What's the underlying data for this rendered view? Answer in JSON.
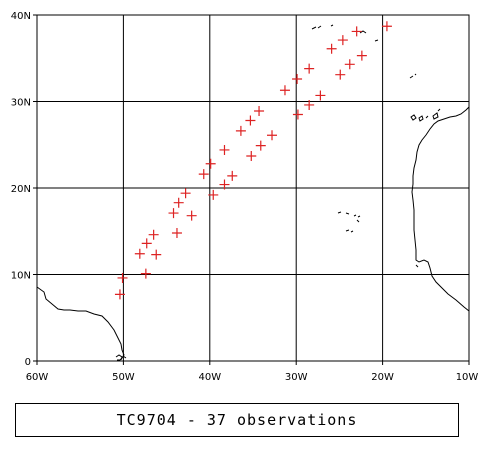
{
  "caption": "TC9704 - 37 observations",
  "map": {
    "lon_range": [
      -60,
      -10
    ],
    "lat_range": [
      0,
      40
    ],
    "grid_lons": [
      -50,
      -40,
      -30,
      -20
    ],
    "grid_lats": [
      10,
      20,
      30
    ],
    "lon_ticks": [
      {
        "lon": -60,
        "label": "60W"
      },
      {
        "lon": -50,
        "label": "50W"
      },
      {
        "lon": -40,
        "label": "40W"
      },
      {
        "lon": -30,
        "label": "30W"
      },
      {
        "lon": -20,
        "label": "20W"
      },
      {
        "lon": -10,
        "label": "10W"
      }
    ],
    "lat_ticks": [
      {
        "lat": 0,
        "label": "0"
      },
      {
        "lat": 10,
        "label": "10N"
      },
      {
        "lat": 20,
        "label": "20N"
      },
      {
        "lat": 30,
        "label": "30N"
      },
      {
        "lat": 40,
        "label": "40N"
      }
    ],
    "colors": {
      "grid": "#000000",
      "coast": "#000000",
      "marker": "#dd2222"
    }
  },
  "observations": [
    {
      "lon": -50.4,
      "lat": 7.7
    },
    {
      "lon": -50.1,
      "lat": 9.6
    },
    {
      "lon": -47.4,
      "lat": 10.1
    },
    {
      "lon": -48.1,
      "lat": 12.4
    },
    {
      "lon": -47.3,
      "lat": 13.6
    },
    {
      "lon": -46.5,
      "lat": 14.6
    },
    {
      "lon": -46.2,
      "lat": 12.3
    },
    {
      "lon": -44.2,
      "lat": 17.1
    },
    {
      "lon": -43.6,
      "lat": 18.3
    },
    {
      "lon": -43.8,
      "lat": 14.8
    },
    {
      "lon": -42.8,
      "lat": 19.4
    },
    {
      "lon": -42.1,
      "lat": 16.8
    },
    {
      "lon": -40.7,
      "lat": 21.6
    },
    {
      "lon": -39.9,
      "lat": 22.8
    },
    {
      "lon": -39.6,
      "lat": 19.2
    },
    {
      "lon": -38.3,
      "lat": 24.4
    },
    {
      "lon": -38.3,
      "lat": 20.4
    },
    {
      "lon": -37.4,
      "lat": 21.4
    },
    {
      "lon": -36.4,
      "lat": 26.6
    },
    {
      "lon": -35.3,
      "lat": 27.8
    },
    {
      "lon": -35.2,
      "lat": 23.7
    },
    {
      "lon": -34.3,
      "lat": 28.9
    },
    {
      "lon": -34.1,
      "lat": 24.9
    },
    {
      "lon": -32.8,
      "lat": 26.1
    },
    {
      "lon": -31.3,
      "lat": 31.3
    },
    {
      "lon": -29.9,
      "lat": 32.6
    },
    {
      "lon": -29.8,
      "lat": 28.5
    },
    {
      "lon": -28.5,
      "lat": 33.8
    },
    {
      "lon": -28.5,
      "lat": 29.6
    },
    {
      "lon": -27.2,
      "lat": 30.7
    },
    {
      "lon": -25.9,
      "lat": 36.1
    },
    {
      "lon": -24.9,
      "lat": 33.1
    },
    {
      "lon": -24.6,
      "lat": 37.1
    },
    {
      "lon": -23.8,
      "lat": 34.3
    },
    {
      "lon": -23.0,
      "lat": 38.1
    },
    {
      "lon": -22.4,
      "lat": 35.3
    },
    {
      "lon": -19.5,
      "lat": 38.7
    }
  ]
}
